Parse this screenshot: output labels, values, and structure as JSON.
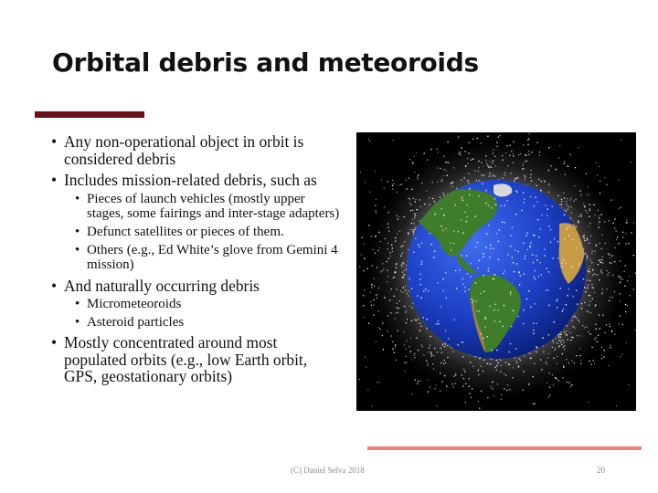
{
  "slide": {
    "title": "Orbital debris and meteoroids",
    "bullets": [
      {
        "text": "Any non-operational object in orbit is considered debris"
      },
      {
        "text": "Includes mission-related debris, such as",
        "sub": [
          "Pieces of launch vehicles (mostly upper stages, some fairings and inter-stage adapters)",
          "Defunct satellites or pieces of them.",
          "Others (e.g., Ed White’s glove from Gemini 4 mission)"
        ]
      },
      {
        "text": "And naturally occurring debris",
        "sub": [
          "Micrometeoroids",
          "Asteroid particles"
        ]
      },
      {
        "text": "Mostly concentrated around most populated orbits (e.g., low Earth orbit, GPS, geostationary orbits)"
      }
    ]
  },
  "footer": {
    "credit": "(C) Daniel Selva 2018",
    "page_number": "20"
  },
  "colors": {
    "title_rule": "#6b0f14",
    "accent_bar": "#f08078",
    "ocean": "#1c3fc4",
    "land": "#3f7d2a",
    "desert": "#c79a45"
  }
}
